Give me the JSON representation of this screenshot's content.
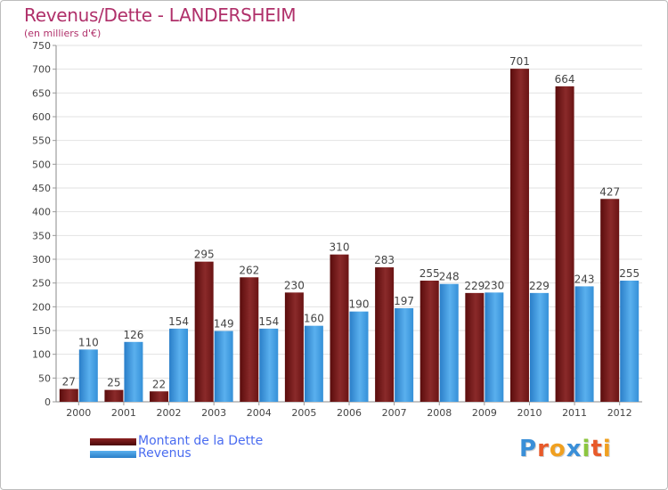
{
  "chart_data": {
    "type": "bar",
    "title": "Revenus/Dette - LANDERSHEIM",
    "subtitle": "(en milliers d'€)",
    "categories": [
      "2000",
      "2001",
      "2002",
      "2003",
      "2004",
      "2005",
      "2006",
      "2007",
      "2008",
      "2009",
      "2010",
      "2011",
      "2012"
    ],
    "series": [
      {
        "name": "Montant de la Dette",
        "values": [
          27,
          25,
          22,
          295,
          262,
          230,
          310,
          283,
          255,
          229,
          701,
          664,
          427
        ],
        "color": "#7a1a1a"
      },
      {
        "name": "Revenus",
        "values": [
          110,
          126,
          154,
          149,
          154,
          160,
          190,
          197,
          248,
          230,
          229,
          243,
          255
        ],
        "color": "#3a9ae0"
      }
    ],
    "ylim": [
      0,
      750
    ],
    "ytick_step": 50,
    "grid": true,
    "legend_position": "bottom-left"
  },
  "logo": {
    "letters": [
      {
        "char": "P",
        "color": "#3a8fd8"
      },
      {
        "char": "r",
        "color": "#e85a2a"
      },
      {
        "char": "o",
        "color": "#f0a020"
      },
      {
        "char": "x",
        "color": "#3a8fd8"
      },
      {
        "char": "i",
        "color": "#8cc63f"
      },
      {
        "char": "t",
        "color": "#e85a2a"
      },
      {
        "char": "i",
        "color": "#f0a020"
      }
    ]
  }
}
